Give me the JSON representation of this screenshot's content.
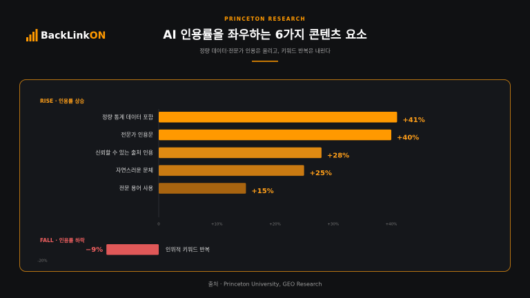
{
  "header": {
    "logo_main": "BackLink",
    "logo_accent": "ON",
    "kicker": "PRINCETON RESEARCH",
    "title": "AI 인용률을 좌우하는 6가지 콘텐츠 요소",
    "subtitle": "정량 데이터·전문가 인용은 올리고, 키워드 반복은 내린다"
  },
  "chart_data": [
    {
      "type": "bar",
      "orientation": "horizontal",
      "title": "RISE · 인용률 상승",
      "categories": [
        "정량 통계 데이터 포함",
        "전문가 인용문",
        "신뢰할 수 있는 출처 인용",
        "자연스러운 문체",
        "전문 용어 사용"
      ],
      "values": [
        41,
        40,
        28,
        25,
        15
      ],
      "value_labels": [
        "+41%",
        "+40%",
        "+28%",
        "+25%",
        "+15%"
      ],
      "colors": [
        "#ff9900",
        "#ff9900",
        "#e08a12",
        "#c97a12",
        "#a86410"
      ],
      "label_color": "#ff9f1a",
      "xlim": [
        0,
        44
      ],
      "xticks": [
        0,
        {
          "value": 10,
          "label": "+10%"
        },
        {
          "value": 20,
          "label": "+20%"
        },
        {
          "value": 30,
          "label": "+30%"
        },
        {
          "value": 40,
          "label": "+40%"
        }
      ]
    },
    {
      "type": "bar",
      "orientation": "horizontal",
      "title": "FALL · 인용률 하락",
      "categories": [
        "인위적 키워드 반복"
      ],
      "values": [
        -9
      ],
      "value_labels": [
        "−9%"
      ],
      "colors": [
        "#e05858"
      ],
      "label_color": "#f06060",
      "xlim": [
        -20,
        0
      ],
      "xticks": [
        {
          "value": -20,
          "label": "-20%"
        }
      ]
    }
  ],
  "footer": "출처 · Princeton University, GEO Research"
}
